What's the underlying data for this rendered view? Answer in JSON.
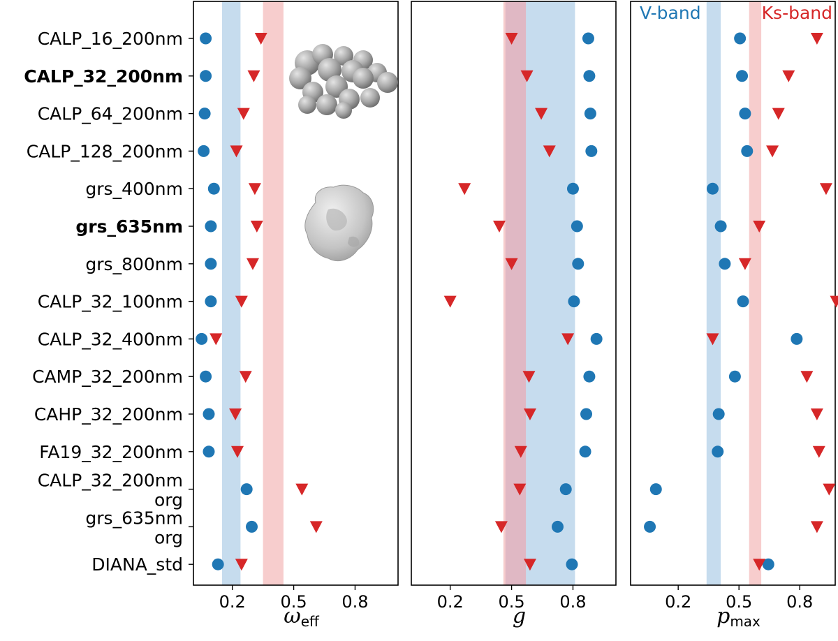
{
  "chart_data": {
    "type": "scatter",
    "row_labels": [
      {
        "lines": [
          "CALP_16_200nm"
        ],
        "bold": false
      },
      {
        "lines": [
          "CALP_32_200nm"
        ],
        "bold": true
      },
      {
        "lines": [
          "CALP_64_200nm"
        ],
        "bold": false
      },
      {
        "lines": [
          "CALP_128_200nm"
        ],
        "bold": false
      },
      {
        "lines": [
          "grs_400nm"
        ],
        "bold": false
      },
      {
        "lines": [
          "grs_635nm"
        ],
        "bold": true
      },
      {
        "lines": [
          "grs_800nm"
        ],
        "bold": false
      },
      {
        "lines": [
          "CALP_32_100nm"
        ],
        "bold": false
      },
      {
        "lines": [
          "CALP_32_400nm"
        ],
        "bold": false
      },
      {
        "lines": [
          "CAMP_32_200nm"
        ],
        "bold": false
      },
      {
        "lines": [
          "CAHP_32_200nm"
        ],
        "bold": false
      },
      {
        "lines": [
          "FA19_32_200nm"
        ],
        "bold": false
      },
      {
        "lines": [
          "CALP_32_200nm",
          "org"
        ],
        "bold": false
      },
      {
        "lines": [
          "grs_635nm",
          "org"
        ],
        "bold": false
      },
      {
        "lines": [
          "DIANA_std"
        ],
        "bold": false
      }
    ],
    "band_legend": {
      "v_label": "V-band",
      "v_color": "#1f77b4",
      "ks_label": "Ks-band",
      "ks_color": "#d62728"
    },
    "colors": {
      "v_marker": "#1f77b4",
      "ks_marker": "#d62728",
      "v_band": "#c6dcee",
      "ks_band": "#f7cdcd",
      "overlap_band": "#e0b8c4"
    },
    "panels": [
      {
        "name": "omega",
        "xlabel_main": "ω",
        "xlabel_sub": "eff",
        "xlim": [
          0.01,
          1.01
        ],
        "ticks": [
          {
            "value": 0.2,
            "label": "0.2"
          },
          {
            "value": 0.5,
            "label": "0.5"
          },
          {
            "value": 0.8,
            "label": "0.8"
          }
        ],
        "v_band": [
          0.15,
          0.24
        ],
        "ks_band": [
          0.35,
          0.45
        ],
        "v_values": [
          0.07,
          0.07,
          0.065,
          0.06,
          0.11,
          0.095,
          0.095,
          0.095,
          0.05,
          0.07,
          0.085,
          0.085,
          0.27,
          0.295,
          0.13
        ],
        "ks_values": [
          0.34,
          0.305,
          0.255,
          0.22,
          0.31,
          0.32,
          0.3,
          0.245,
          0.12,
          0.265,
          0.215,
          0.225,
          0.54,
          0.61,
          0.245
        ]
      },
      {
        "name": "g",
        "xlabel_main": "g",
        "xlabel_sub": "",
        "xlim": [
          0.01,
          1.01
        ],
        "ticks": [
          {
            "value": 0.2,
            "label": "0.2"
          },
          {
            "value": 0.5,
            "label": "0.5"
          },
          {
            "value": 0.8,
            "label": "0.8"
          }
        ],
        "v_band": [
          0.47,
          0.81
        ],
        "ks_band": [
          0.46,
          0.57
        ],
        "v_values": [
          0.875,
          0.88,
          0.885,
          0.89,
          0.8,
          0.82,
          0.825,
          0.805,
          0.915,
          0.88,
          0.865,
          0.86,
          0.765,
          0.725,
          0.795
        ],
        "ks_values": [
          0.5,
          0.575,
          0.645,
          0.685,
          0.27,
          0.44,
          0.5,
          0.2,
          0.775,
          0.585,
          0.59,
          0.545,
          0.54,
          0.45,
          0.59
        ]
      },
      {
        "name": "pmax",
        "xlabel_main": "p",
        "xlabel_sub": "max",
        "xlim": [
          -0.035,
          0.975
        ],
        "ticks": [
          {
            "value": 0.2,
            "label": "0.2"
          },
          {
            "value": 0.5,
            "label": "0.5"
          },
          {
            "value": 0.8,
            "label": "0.8"
          }
        ],
        "v_band": [
          0.34,
          0.41
        ],
        "ks_band": [
          0.55,
          0.61
        ],
        "v_values": [
          0.505,
          0.515,
          0.53,
          0.54,
          0.37,
          0.41,
          0.43,
          0.52,
          0.785,
          0.48,
          0.4,
          0.395,
          0.09,
          0.06,
          0.645
        ],
        "ks_values": [
          0.885,
          0.745,
          0.695,
          0.665,
          0.93,
          0.6,
          0.53,
          0.98,
          0.37,
          0.835,
          0.885,
          0.895,
          0.945,
          0.885,
          0.6
        ]
      }
    ]
  }
}
